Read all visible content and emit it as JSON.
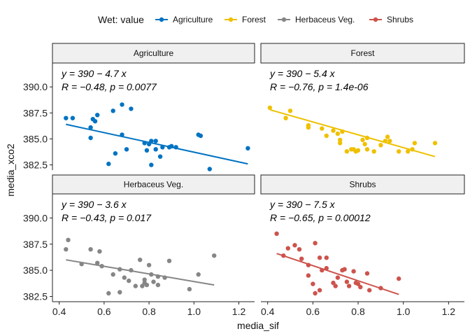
{
  "chart_data": {
    "type": "scatter",
    "xlabel": "media_sif",
    "ylabel": "media_xco2",
    "xlim": [
      0.37,
      1.27
    ],
    "ylim": [
      382.0,
      392.3
    ],
    "x_ticks": [
      "0.4",
      "0.6",
      "0.8",
      "1.0",
      "1.2"
    ],
    "y_ticks": [
      "382.5",
      "385.0",
      "387.5",
      "390.0"
    ],
    "legend_title": "Wet: value",
    "legend_position": "top",
    "grid": false,
    "panels": [
      {
        "name": "Agriculture",
        "color": "#0073C2",
        "eq_line": "y = 390 − 4.7 x",
        "stat_line": "R = −0.48, p = 0.0077",
        "fit": {
          "x": [
            0.43,
            1.24
          ],
          "y": [
            386.4,
            382.6
          ]
        },
        "points": [
          [
            0.43,
            387.0
          ],
          [
            0.46,
            387.0
          ],
          [
            0.54,
            386.1
          ],
          [
            0.55,
            386.9
          ],
          [
            0.56,
            386.7
          ],
          [
            0.54,
            385.1
          ],
          [
            0.57,
            387.3
          ],
          [
            0.62,
            382.6
          ],
          [
            0.64,
            387.7
          ],
          [
            0.65,
            383.6
          ],
          [
            0.68,
            388.3
          ],
          [
            0.68,
            385.4
          ],
          [
            0.7,
            384.0
          ],
          [
            0.72,
            387.9
          ],
          [
            0.78,
            384.6
          ],
          [
            0.79,
            383.9
          ],
          [
            0.8,
            384.5
          ],
          [
            0.81,
            384.8
          ],
          [
            0.81,
            382.5
          ],
          [
            0.83,
            384.8
          ],
          [
            0.83,
            384.0
          ],
          [
            0.85,
            383.3
          ],
          [
            0.86,
            384.2
          ],
          [
            0.89,
            384.2
          ],
          [
            0.9,
            384.3
          ],
          [
            0.92,
            384.2
          ],
          [
            1.02,
            385.4
          ],
          [
            1.03,
            385.3
          ],
          [
            1.07,
            382.1
          ],
          [
            1.24,
            384.1
          ]
        ]
      },
      {
        "name": "Forest",
        "color": "#EFC000",
        "eq_line": "y = 390 − 5.4 x",
        "stat_line": "R = −0.76, p = 1.4e-06",
        "fit": {
          "x": [
            0.41,
            1.14
          ],
          "y": [
            387.8,
            383.3
          ]
        },
        "points": [
          [
            0.41,
            388.0
          ],
          [
            0.48,
            387.0
          ],
          [
            0.5,
            387.7
          ],
          [
            0.58,
            386.3
          ],
          [
            0.58,
            386.1
          ],
          [
            0.64,
            386.0
          ],
          [
            0.66,
            385.3
          ],
          [
            0.69,
            385.8
          ],
          [
            0.71,
            385.5
          ],
          [
            0.72,
            384.9
          ],
          [
            0.72,
            384.6
          ],
          [
            0.73,
            385.7
          ],
          [
            0.75,
            383.8
          ],
          [
            0.77,
            384.0
          ],
          [
            0.78,
            384.0
          ],
          [
            0.79,
            383.8
          ],
          [
            0.8,
            383.9
          ],
          [
            0.82,
            384.9
          ],
          [
            0.83,
            384.5
          ],
          [
            0.84,
            385.1
          ],
          [
            0.84,
            384.0
          ],
          [
            0.87,
            383.8
          ],
          [
            0.9,
            384.4
          ],
          [
            0.92,
            384.8
          ],
          [
            0.93,
            385.2
          ],
          [
            0.94,
            384.8
          ],
          [
            0.98,
            383.8
          ],
          [
            1.02,
            383.8
          ],
          [
            1.04,
            384.0
          ],
          [
            1.05,
            384.6
          ],
          [
            1.14,
            384.6
          ]
        ]
      },
      {
        "name": "Herbaceus Veg.",
        "color": "#868686",
        "eq_line": "y = 390 − 3.6 x",
        "stat_line": "R = −0.43, p = 0.017",
        "fit": {
          "x": [
            0.43,
            1.09
          ],
          "y": [
            386.0,
            383.6
          ]
        },
        "points": [
          [
            0.43,
            387.0
          ],
          [
            0.44,
            387.9
          ],
          [
            0.5,
            385.6
          ],
          [
            0.54,
            387.0
          ],
          [
            0.57,
            385.7
          ],
          [
            0.58,
            386.8
          ],
          [
            0.59,
            385.4
          ],
          [
            0.62,
            382.8
          ],
          [
            0.64,
            384.6
          ],
          [
            0.67,
            385.1
          ],
          [
            0.67,
            382.9
          ],
          [
            0.69,
            384.3
          ],
          [
            0.71,
            384.0
          ],
          [
            0.72,
            385.0
          ],
          [
            0.74,
            383.5
          ],
          [
            0.76,
            386.0
          ],
          [
            0.77,
            383.5
          ],
          [
            0.78,
            383.8
          ],
          [
            0.78,
            384.1
          ],
          [
            0.79,
            383.6
          ],
          [
            0.8,
            385.5
          ],
          [
            0.81,
            384.6
          ],
          [
            0.82,
            383.9
          ],
          [
            0.84,
            384.4
          ],
          [
            0.84,
            383.6
          ],
          [
            0.87,
            384.3
          ],
          [
            0.89,
            385.9
          ],
          [
            0.98,
            383.2
          ],
          [
            1.02,
            384.6
          ],
          [
            1.09,
            386.4
          ]
        ]
      },
      {
        "name": "Shrubs",
        "color": "#CD534C",
        "eq_line": "y = 390 − 7.5 x",
        "stat_line": "R = −0.65, p = 0.00012",
        "fit": {
          "x": [
            0.44,
            0.98
          ],
          "y": [
            386.6,
            382.7
          ]
        },
        "points": [
          [
            0.44,
            388.5
          ],
          [
            0.47,
            386.4
          ],
          [
            0.49,
            387.1
          ],
          [
            0.52,
            387.4
          ],
          [
            0.54,
            387.0
          ],
          [
            0.55,
            386.1
          ],
          [
            0.58,
            384.5
          ],
          [
            0.58,
            385.5
          ],
          [
            0.6,
            383.7
          ],
          [
            0.61,
            387.6
          ],
          [
            0.61,
            382.8
          ],
          [
            0.63,
            383.1
          ],
          [
            0.63,
            386.2
          ],
          [
            0.64,
            385.0
          ],
          [
            0.66,
            386.2
          ],
          [
            0.66,
            385.2
          ],
          [
            0.69,
            383.8
          ],
          [
            0.7,
            383.5
          ],
          [
            0.71,
            384.3
          ],
          [
            0.73,
            385.0
          ],
          [
            0.74,
            385.1
          ],
          [
            0.75,
            383.9
          ],
          [
            0.76,
            383.5
          ],
          [
            0.78,
            384.9
          ],
          [
            0.79,
            383.8
          ],
          [
            0.8,
            383.7
          ],
          [
            0.81,
            383.4
          ],
          [
            0.84,
            384.7
          ],
          [
            0.85,
            383.1
          ],
          [
            0.9,
            383.3
          ],
          [
            0.98,
            384.2
          ]
        ]
      }
    ]
  }
}
